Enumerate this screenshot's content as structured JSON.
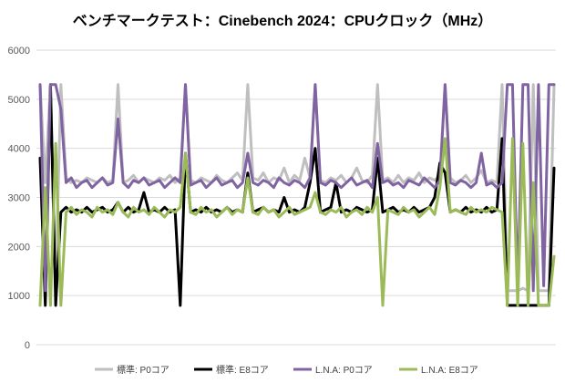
{
  "chart_data": {
    "type": "line",
    "title": "ベンチマークテスト：Cinebench 2024：CPUクロック（MHz）",
    "xlabel": "",
    "ylabel": "",
    "ylim": [
      0,
      6000
    ],
    "yticks": [
      0,
      1000,
      2000,
      3000,
      4000,
      5000,
      6000
    ],
    "grid": true,
    "legend_position": "bottom",
    "series": [
      {
        "name": "標準: P0コア",
        "color": "#bfbfbf",
        "values": [
          5300,
          3300,
          5300,
          1100,
          5300,
          3400,
          3300,
          3350,
          3300,
          3400,
          3350,
          3300,
          3400,
          3300,
          3350,
          5300,
          3300,
          3350,
          3450,
          3300,
          3400,
          3350,
          3300,
          3400,
          3350,
          3450,
          3300,
          3400,
          5300,
          3350,
          3300,
          3400,
          3350,
          3300,
          3450,
          3350,
          3300,
          3400,
          3500,
          3350,
          5300,
          3400,
          3350,
          3500,
          3300,
          3400,
          3350,
          3600,
          3300,
          3450,
          3350,
          3800,
          3400,
          5300,
          3350,
          3300,
          3400,
          3350,
          3450,
          3300,
          3400,
          3600,
          3350,
          3300,
          3450,
          5300,
          3350,
          3400,
          3300,
          3450,
          3300,
          3400,
          3350,
          3500,
          3300,
          3400,
          3350,
          3450,
          5300,
          3400,
          3300,
          3350,
          3450,
          3300,
          3400,
          3550,
          3300,
          3350,
          3300,
          5300,
          1100,
          1100,
          1100,
          1150,
          1100,
          5300,
          1100,
          1100,
          1100,
          5300
        ]
      },
      {
        "name": "標準: E8コア",
        "color": "#000000",
        "values": [
          3800,
          800,
          5300,
          800,
          2700,
          2800,
          2700,
          2750,
          2700,
          2800,
          2700,
          2750,
          2800,
          2700,
          2750,
          2900,
          2700,
          2800,
          2700,
          2750,
          3100,
          2700,
          2750,
          2700,
          2800,
          2700,
          2750,
          800,
          3900,
          2700,
          2750,
          2700,
          2800,
          2700,
          2750,
          2700,
          2800,
          2700,
          2750,
          2700,
          3500,
          2700,
          2750,
          2800,
          2700,
          2750,
          2700,
          3000,
          2700,
          2750,
          2700,
          2800,
          3300,
          4000,
          2700,
          2750,
          2800,
          3300,
          2700,
          2750,
          2700,
          2800,
          2750,
          2700,
          2750,
          3800,
          2700,
          2750,
          2800,
          2700,
          2750,
          2700,
          2800,
          2700,
          2750,
          2800,
          3000,
          3700,
          3500,
          2700,
          2750,
          2700,
          2800,
          2700,
          2750,
          2700,
          2800,
          2700,
          2750,
          4200,
          800,
          800,
          800,
          800,
          800,
          800,
          800,
          800,
          800,
          3600
        ]
      },
      {
        "name": "L.N.A: P0コア",
        "color": "#8064a2",
        "values": [
          5300,
          1100,
          5300,
          5300,
          4800,
          3300,
          3400,
          3200,
          3300,
          3350,
          3200,
          3300,
          3400,
          3250,
          3300,
          4600,
          3300,
          3200,
          3350,
          3300,
          3400,
          3250,
          3300,
          3350,
          3200,
          3300,
          3400,
          3300,
          5300,
          3250,
          3300,
          3350,
          3200,
          3300,
          3400,
          3250,
          3300,
          3350,
          3200,
          3300,
          3900,
          3300,
          3250,
          3350,
          3300,
          3200,
          3400,
          3300,
          3250,
          3350,
          3300,
          3200,
          3400,
          5300,
          3300,
          3250,
          3350,
          3300,
          3200,
          3300,
          3400,
          3250,
          3300,
          3350,
          3200,
          4100,
          3300,
          3350,
          3250,
          3300,
          3200,
          3350,
          3300,
          3250,
          3400,
          3300,
          3200,
          3350,
          5300,
          3300,
          3250,
          3350,
          3300,
          3200,
          3300,
          3900,
          3250,
          3300,
          3200,
          3300,
          5300,
          5300,
          1100,
          5300,
          5300,
          1100,
          5300,
          1200,
          5300,
          5300
        ]
      },
      {
        "name": "L.N.A: E8コア",
        "color": "#9bbb59",
        "values": [
          800,
          3200,
          800,
          4100,
          800,
          2700,
          2800,
          2650,
          2750,
          2700,
          2600,
          2800,
          2700,
          2750,
          2650,
          2900,
          2700,
          2600,
          2800,
          2700,
          2750,
          2650,
          2800,
          2700,
          2600,
          2750,
          2700,
          2800,
          3900,
          2700,
          2650,
          2800,
          2700,
          2750,
          2600,
          2700,
          2800,
          2650,
          2750,
          2700,
          3400,
          2700,
          2650,
          2800,
          2700,
          2750,
          2600,
          2700,
          2800,
          2650,
          2700,
          2750,
          2800,
          3100,
          2700,
          2650,
          2750,
          2700,
          2800,
          2600,
          2700,
          2750,
          2650,
          2800,
          2700,
          3000,
          800,
          2750,
          2700,
          2650,
          2800,
          2700,
          2750,
          2600,
          2700,
          2800,
          2650,
          3200,
          4200,
          2700,
          2750,
          2700,
          2650,
          2800,
          2700,
          2750,
          2700,
          2800,
          2750,
          2700,
          800,
          4200,
          800,
          4100,
          800,
          3300,
          800,
          800,
          800,
          1800
        ]
      }
    ]
  }
}
